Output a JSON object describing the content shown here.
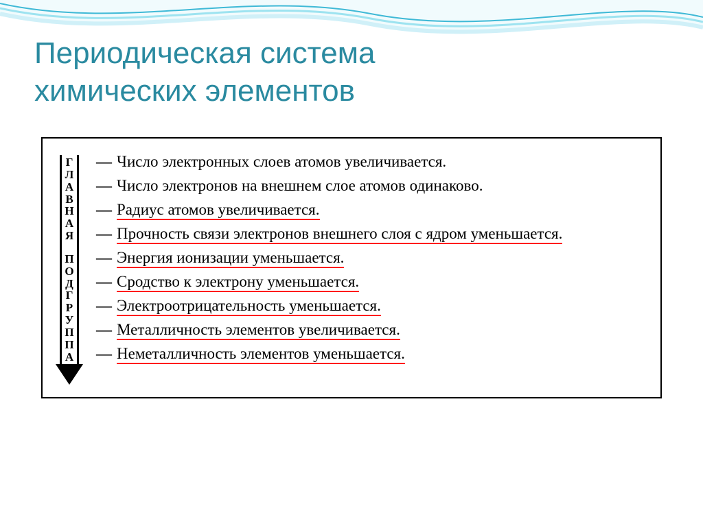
{
  "title_color": "#2a8aa0",
  "slide": {
    "title_line1": "Периодическая система",
    "title_line2": "химических элементов"
  },
  "arrow_label": "ГЛАВНАЯ  ПОДГРУППА",
  "items": [
    {
      "text": "Число электронных слоев атомов увеличивается.",
      "underlined": false
    },
    {
      "text": "Число электронов на внешнем слое атомов одинаково.",
      "underlined": false
    },
    {
      "text": "Радиус атомов увеличивается.",
      "underlined": true
    },
    {
      "text": "Прочность связи электронов внешнего слоя с ядром уменьшается.",
      "underlined": true,
      "multiline": true
    },
    {
      "text": "Энергия ионизации уменьшается.",
      "underlined": true
    },
    {
      "text": "Сродство к электрону уменьшается.",
      "underlined": true
    },
    {
      "text": "Электроотрицательность уменьшается.",
      "underlined": true
    },
    {
      "text": "Металличность элементов увеличивается.",
      "underlined": true
    },
    {
      "text": "Неметалличность элементов уменьшается.",
      "underlined": true
    }
  ],
  "wave": {
    "stroke1": "#3fb9d6",
    "stroke2": "#9de3f0",
    "stroke3": "#d0f0f8",
    "fill": "#e8f8fc"
  }
}
